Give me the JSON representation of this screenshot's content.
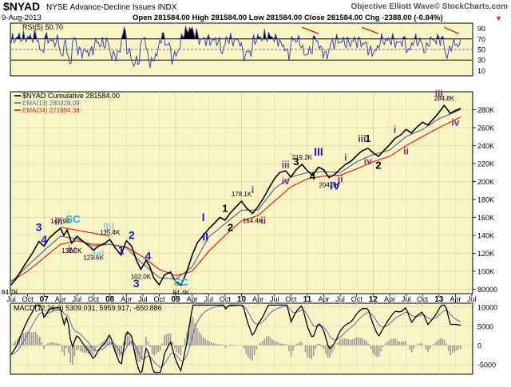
{
  "header": {
    "symbol": "$NYAD",
    "name": "NYSE Advance-Decline Issues INDX",
    "brand": "Objective Elliott Wave© StockCharts.com",
    "date": "9-Aug-2013",
    "quote": "Open 281584.00  High 281584.00  Low 281584.00  Close 281584.00  Chg -2388.00 (-0.84%)",
    "change_arrow": "▼"
  },
  "colors": {
    "panel_bg": "#f8f4c4",
    "price": "#000000",
    "ema13": "#5a6a9a",
    "ema34": "#e02020",
    "rsi": "#4048a8",
    "macd": "#000000",
    "macd_signal": "#5a6ab0",
    "histogram": "#9a9a9a",
    "annot_blue": "#1a1ad0",
    "annot_purple": "#7a2a7a",
    "annot_cyan": "#2aaed8",
    "annot_lightblue": "#7ab0e0",
    "trendline": "#e02020"
  },
  "chart_data": [
    {
      "type": "line",
      "panel": "rsi",
      "legend": "RSI(5) 50.70",
      "y_ticks": [
        "90",
        "70",
        "50",
        "30",
        "10"
      ],
      "ylim": [
        0,
        100
      ],
      "overbought": 70,
      "oversold": 30
    },
    {
      "type": "line",
      "panel": "price",
      "legend": [
        {
          "label": "$NYAD  Cumulative 281584.00",
          "series": "price"
        },
        {
          "label": "EMA(13) 280328.09",
          "series": "ema13"
        },
        {
          "label": "EMA(34) 271994.38",
          "series": "ema34"
        }
      ],
      "ylim": [
        75000,
        300000
      ],
      "y_ticks": [
        {
          "label": "280K",
          "value": 280000
        },
        {
          "label": "260K",
          "value": 260000
        },
        {
          "label": "240K",
          "value": 240000
        },
        {
          "label": "220K",
          "value": 220000
        },
        {
          "label": "200K",
          "value": 200000
        },
        {
          "label": "180K",
          "value": 180000
        },
        {
          "label": "160K",
          "value": 160000
        },
        {
          "label": "140K",
          "value": 140000
        },
        {
          "label": "120K",
          "value": 120000
        },
        {
          "label": "100K",
          "value": 100000
        },
        {
          "label": "80000",
          "value": 80000
        }
      ],
      "x_ticks": [
        {
          "label": "Jul",
          "x": 0
        },
        {
          "label": "Oct",
          "x": 0.25
        },
        {
          "label": "07",
          "x": 0.5,
          "bold": true
        },
        {
          "label": "Apr",
          "x": 0.75
        },
        {
          "label": "Jul",
          "x": 1.0
        },
        {
          "label": "Oct",
          "x": 1.25
        },
        {
          "label": "08",
          "x": 1.5,
          "bold": true
        },
        {
          "label": "Apr",
          "x": 1.75
        },
        {
          "label": "Jul",
          "x": 2.0
        },
        {
          "label": "Oct",
          "x": 2.25
        },
        {
          "label": "09",
          "x": 2.5,
          "bold": true
        },
        {
          "label": "Apr",
          "x": 2.75
        },
        {
          "label": "Jul",
          "x": 3.0
        },
        {
          "label": "Oct",
          "x": 3.25
        },
        {
          "label": "10",
          "x": 3.5,
          "bold": true
        },
        {
          "label": "Apr",
          "x": 3.75
        },
        {
          "label": "Jul",
          "x": 4.0
        },
        {
          "label": "Oct",
          "x": 4.25
        },
        {
          "label": "11",
          "x": 4.5,
          "bold": true
        },
        {
          "label": "Apr",
          "x": 4.75
        },
        {
          "label": "Jul",
          "x": 5.0
        },
        {
          "label": "Oct",
          "x": 5.25
        },
        {
          "label": "12",
          "x": 5.5,
          "bold": true
        },
        {
          "label": "Apr",
          "x": 5.75
        },
        {
          "label": "Jul",
          "x": 6.0
        },
        {
          "label": "Oct",
          "x": 6.25
        },
        {
          "label": "13",
          "x": 6.5,
          "bold": true
        },
        {
          "label": "Apr",
          "x": 6.75
        },
        {
          "label": "Jul",
          "x": 7.0
        }
      ],
      "x_axis_note": "x values are years since Jul 2006",
      "price_points": [
        [
          0.0,
          84700
        ],
        [
          0.08,
          92000
        ],
        [
          0.17,
          103000
        ],
        [
          0.25,
          112000
        ],
        [
          0.33,
          121000
        ],
        [
          0.42,
          133000
        ],
        [
          0.5,
          128000
        ],
        [
          0.58,
          137000
        ],
        [
          0.67,
          143000
        ],
        [
          0.75,
          147900
        ],
        [
          0.8,
          140000
        ],
        [
          0.85,
          146000
        ],
        [
          0.92,
          131200
        ],
        [
          1.0,
          139000
        ],
        [
          1.08,
          134000
        ],
        [
          1.17,
          129000
        ],
        [
          1.25,
          123500
        ],
        [
          1.33,
          128000
        ],
        [
          1.42,
          131000
        ],
        [
          1.5,
          135400
        ],
        [
          1.58,
          126000
        ],
        [
          1.67,
          118000
        ],
        [
          1.75,
          134000
        ],
        [
          1.83,
          128000
        ],
        [
          1.9,
          113000
        ],
        [
          1.97,
          102000
        ],
        [
          2.05,
          112000
        ],
        [
          2.1,
          106000
        ],
        [
          2.17,
          92000
        ],
        [
          2.25,
          85000
        ],
        [
          2.33,
          96000
        ],
        [
          2.42,
          99000
        ],
        [
          2.5,
          88000
        ],
        [
          2.58,
          84400
        ],
        [
          2.67,
          100000
        ],
        [
          2.75,
          118000
        ],
        [
          2.83,
          132000
        ],
        [
          2.92,
          140000
        ],
        [
          3.0,
          147000
        ],
        [
          3.08,
          153000
        ],
        [
          3.17,
          160000
        ],
        [
          3.25,
          157000
        ],
        [
          3.33,
          165000
        ],
        [
          3.42,
          172000
        ],
        [
          3.5,
          178100
        ],
        [
          3.58,
          170000
        ],
        [
          3.67,
          164400
        ],
        [
          3.75,
          172000
        ],
        [
          3.83,
          181000
        ],
        [
          3.92,
          193000
        ],
        [
          4.0,
          203000
        ],
        [
          4.08,
          210000
        ],
        [
          4.17,
          212000
        ],
        [
          4.25,
          205000
        ],
        [
          4.33,
          213000
        ],
        [
          4.42,
          219200
        ],
        [
          4.5,
          212000
        ],
        [
          4.58,
          207000
        ],
        [
          4.67,
          216000
        ],
        [
          4.75,
          213000
        ],
        [
          4.83,
          204300
        ],
        [
          4.92,
          208000
        ],
        [
          5.0,
          214000
        ],
        [
          5.08,
          219000
        ],
        [
          5.17,
          223000
        ],
        [
          5.25,
          229000
        ],
        [
          5.33,
          234000
        ],
        [
          5.42,
          237000
        ],
        [
          5.5,
          232000
        ],
        [
          5.58,
          228000
        ],
        [
          5.67,
          235000
        ],
        [
          5.75,
          241000
        ],
        [
          5.83,
          248000
        ],
        [
          5.92,
          252000
        ],
        [
          6.0,
          258000
        ],
        [
          6.08,
          254000
        ],
        [
          6.17,
          261000
        ],
        [
          6.25,
          266000
        ],
        [
          6.33,
          263000
        ],
        [
          6.42,
          270000
        ],
        [
          6.5,
          277000
        ],
        [
          6.58,
          284800
        ],
        [
          6.67,
          276000
        ],
        [
          6.75,
          279000
        ],
        [
          6.83,
          281584
        ]
      ],
      "ema13_points": [
        [
          0.0,
          88000
        ],
        [
          0.25,
          106000
        ],
        [
          0.5,
          123000
        ],
        [
          0.75,
          139000
        ],
        [
          1.0,
          136000
        ],
        [
          1.25,
          128000
        ],
        [
          1.5,
          130000
        ],
        [
          1.75,
          126000
        ],
        [
          2.0,
          108000
        ],
        [
          2.25,
          93000
        ],
        [
          2.5,
          91000
        ],
        [
          2.75,
          105000
        ],
        [
          3.0,
          138000
        ],
        [
          3.25,
          153000
        ],
        [
          3.5,
          168000
        ],
        [
          3.75,
          168000
        ],
        [
          4.0,
          192000
        ],
        [
          4.25,
          205000
        ],
        [
          4.5,
          210000
        ],
        [
          4.75,
          211000
        ],
        [
          5.0,
          210000
        ],
        [
          5.25,
          222000
        ],
        [
          5.5,
          230000
        ],
        [
          5.75,
          235000
        ],
        [
          6.0,
          250000
        ],
        [
          6.25,
          258000
        ],
        [
          6.5,
          270000
        ],
        [
          6.67,
          275000
        ],
        [
          6.83,
          280328
        ]
      ],
      "ema34_points": [
        [
          0.0,
          89000
        ],
        [
          0.25,
          100000
        ],
        [
          0.5,
          115000
        ],
        [
          0.75,
          130000
        ],
        [
          1.0,
          134000
        ],
        [
          1.25,
          130000
        ],
        [
          1.5,
          130000
        ],
        [
          1.75,
          127000
        ],
        [
          2.0,
          116000
        ],
        [
          2.25,
          102000
        ],
        [
          2.5,
          95000
        ],
        [
          2.75,
          100000
        ],
        [
          3.0,
          122000
        ],
        [
          3.25,
          140000
        ],
        [
          3.5,
          156000
        ],
        [
          3.75,
          162000
        ],
        [
          4.0,
          178000
        ],
        [
          4.25,
          194000
        ],
        [
          4.5,
          203000
        ],
        [
          4.75,
          206000
        ],
        [
          5.0,
          207000
        ],
        [
          5.25,
          214000
        ],
        [
          5.5,
          222000
        ],
        [
          5.75,
          228000
        ],
        [
          6.0,
          240000
        ],
        [
          6.25,
          250000
        ],
        [
          6.5,
          260000
        ],
        [
          6.67,
          266000
        ],
        [
          6.83,
          271994
        ]
      ],
      "value_labels": [
        {
          "text": "84.7K",
          "x": 0.02,
          "y": 84700
        },
        {
          "text": "147.9K",
          "x": 0.75,
          "y": 147900
        },
        {
          "text": "131.2K",
          "x": 0.92,
          "y": 131200
        },
        {
          "text": "123.5K",
          "x": 1.25,
          "y": 123500
        },
        {
          "text": "135.4K",
          "x": 1.5,
          "y": 135400
        },
        {
          "text": "102.0K",
          "x": 1.97,
          "y": 102000
        },
        {
          "text": "84.4K",
          "x": 2.58,
          "y": 84400
        },
        {
          "text": "178.1K",
          "x": 3.5,
          "y": 178100
        },
        {
          "text": "164.4K",
          "x": 3.67,
          "y": 164400
        },
        {
          "text": "219.2K",
          "x": 4.42,
          "y": 219200
        },
        {
          "text": "204.3K",
          "x": 4.83,
          "y": 204300
        },
        {
          "text": "284.8K",
          "x": 6.58,
          "y": 284800
        }
      ],
      "wave_labels": [
        {
          "text": "3",
          "x": 0.42,
          "y": 145000,
          "style": "blue"
        },
        {
          "text": "4",
          "x": 0.5,
          "y": 131000,
          "style": "blue"
        },
        {
          "text": "iii",
          "x": 0.72,
          "y": 152000,
          "style": "purple"
        },
        {
          "text": "SC",
          "x": 0.94,
          "y": 154000,
          "style": "cyan"
        },
        {
          "text": "iv",
          "x": 0.92,
          "y": 121000,
          "style": "purple"
        },
        {
          "text": "[b]",
          "x": 1.48,
          "y": 146000,
          "style": "lightblue"
        },
        {
          "text": "[a]",
          "x": 1.33,
          "y": 116000,
          "style": "lightblue"
        },
        {
          "text": "2",
          "x": 1.83,
          "y": 136000,
          "style": "blue"
        },
        {
          "text": "1",
          "x": 1.67,
          "y": 119000,
          "style": "blue"
        },
        {
          "text": "4",
          "x": 2.08,
          "y": 113000,
          "style": "blue"
        },
        {
          "text": "3",
          "x": 1.9,
          "y": 82000,
          "style": "blue"
        },
        {
          "text": "SC",
          "x": 2.58,
          "y": 84000,
          "style": "cyan"
        },
        {
          "text": "I",
          "x": 2.92,
          "y": 156000,
          "style": "blue"
        },
        {
          "text": "II",
          "x": 2.95,
          "y": 134000,
          "style": "blue"
        },
        {
          "text": "1",
          "x": 3.25,
          "y": 166000,
          "style": "black"
        },
        {
          "text": "2",
          "x": 3.33,
          "y": 145000,
          "style": "black"
        },
        {
          "text": "i",
          "x": 3.67,
          "y": 187000,
          "style": "purple"
        },
        {
          "text": "ii",
          "x": 3.83,
          "y": 153000,
          "style": "purple"
        },
        {
          "text": "iii",
          "x": 4.17,
          "y": 215000,
          "style": "purple"
        },
        {
          "text": "3",
          "x": 4.33,
          "y": 218000,
          "style": "black"
        },
        {
          "text": "III",
          "x": 4.67,
          "y": 229000,
          "style": "blue"
        },
        {
          "text": "iv",
          "x": 4.17,
          "y": 197000,
          "style": "purple"
        },
        {
          "text": "4",
          "x": 4.58,
          "y": 202000,
          "style": "black"
        },
        {
          "text": "IV",
          "x": 4.92,
          "y": 191000,
          "style": "blue"
        },
        {
          "text": "i",
          "x": 5.08,
          "y": 223000,
          "style": "purple"
        },
        {
          "text": "ii",
          "x": 5.0,
          "y": 199000,
          "style": "purple"
        },
        {
          "text": "iii",
          "x": 5.33,
          "y": 244000,
          "style": "purple"
        },
        {
          "text": "1",
          "x": 5.42,
          "y": 244000,
          "style": "black"
        },
        {
          "text": "iv",
          "x": 5.42,
          "y": 219000,
          "style": "purple"
        },
        {
          "text": "2",
          "x": 5.58,
          "y": 214000,
          "style": "black"
        },
        {
          "text": "i",
          "x": 5.83,
          "y": 254000,
          "style": "purple"
        },
        {
          "text": "ii",
          "x": 6.0,
          "y": 230000,
          "style": "purple"
        },
        {
          "text": "iii",
          "x": 6.5,
          "y": 294000,
          "style": "purple"
        },
        {
          "text": "iv",
          "x": 6.75,
          "y": 262000,
          "style": "purple"
        }
      ]
    },
    {
      "type": "line",
      "panel": "macd",
      "legend": "MACD(12,26,9) 5309.031, 5959.917, -650.886",
      "ylim": [
        -7500,
        11000
      ],
      "y_ticks": [
        {
          "label": "10000",
          "value": 10000
        },
        {
          "label": "5000",
          "value": 5000
        },
        {
          "label": "0",
          "value": 0
        },
        {
          "label": "-5000",
          "value": -5000
        }
      ]
    }
  ]
}
